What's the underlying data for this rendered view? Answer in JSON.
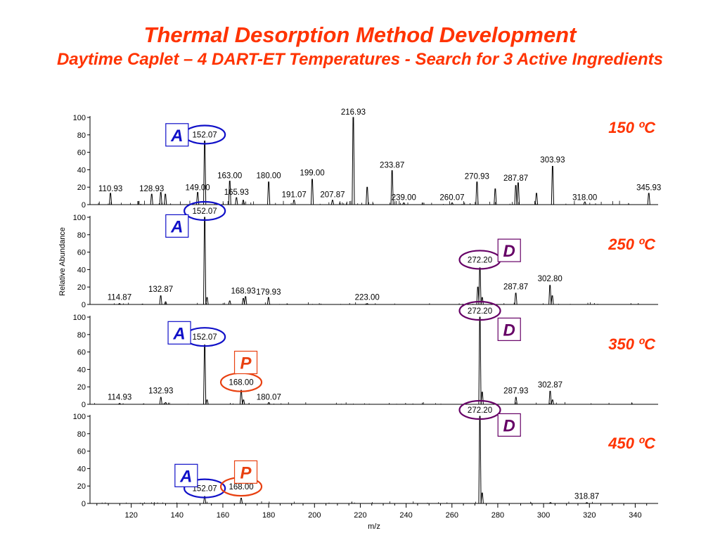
{
  "title": "Thermal Desorption Method Development",
  "subtitle": "Daytime Caplet – 4 DART-ET Temperatures -  Search for 3 Active Ingredients",
  "colors": {
    "title": "#ff3300",
    "blue": "#1010c8",
    "purple": "#660066",
    "orange": "#e84010"
  },
  "chart_data": {
    "type": "line",
    "xlabel": "m/z",
    "ylabel": "Relative Abundance",
    "xlim": [
      102,
      350
    ],
    "ylim": [
      0,
      100
    ],
    "xticks": [
      120,
      140,
      160,
      180,
      200,
      220,
      240,
      260,
      280,
      300,
      320,
      340
    ],
    "yticks": [
      0,
      20,
      40,
      60,
      80,
      100
    ],
    "panels": [
      {
        "temperature": "150 ºC",
        "peaks": [
          {
            "mz": 110.93,
            "y": 13
          },
          {
            "mz": 128.93,
            "y": 12
          },
          {
            "mz": 132.9,
            "y": 14
          },
          {
            "mz": 134.9,
            "y": 12
          },
          {
            "mz": 149.0,
            "y": 14
          },
          {
            "mz": 152.07,
            "y": 73
          },
          {
            "mz": 163.0,
            "y": 27
          },
          {
            "mz": 165.93,
            "y": 8
          },
          {
            "mz": 168.9,
            "y": 5
          },
          {
            "mz": 180.0,
            "y": 26
          },
          {
            "mz": 191.07,
            "y": 5
          },
          {
            "mz": 199.0,
            "y": 29
          },
          {
            "mz": 207.87,
            "y": 5
          },
          {
            "mz": 216.93,
            "y": 100
          },
          {
            "mz": 223.0,
            "y": 20
          },
          {
            "mz": 233.87,
            "y": 39
          },
          {
            "mz": 239.0,
            "y": 2
          },
          {
            "mz": 260.07,
            "y": 2
          },
          {
            "mz": 270.93,
            "y": 26
          },
          {
            "mz": 278.9,
            "y": 18
          },
          {
            "mz": 287.87,
            "y": 22
          },
          {
            "mz": 288.9,
            "y": 25
          },
          {
            "mz": 296.9,
            "y": 13
          },
          {
            "mz": 303.93,
            "y": 44
          },
          {
            "mz": 318.0,
            "y": 3
          },
          {
            "mz": 345.93,
            "y": 13
          }
        ],
        "labels": [
          {
            "text": "110.93",
            "mz": 110.93,
            "y": 13
          },
          {
            "text": "128.93",
            "mz": 128.93,
            "y": 13
          },
          {
            "text": "149.00",
            "mz": 149.0,
            "y": 14
          },
          {
            "text": "163.00",
            "mz": 163.0,
            "y": 28
          },
          {
            "text": "165.93",
            "mz": 165.93,
            "y": 9
          },
          {
            "text": "180.00",
            "mz": 180.0,
            "y": 28
          },
          {
            "text": "191.07",
            "mz": 191.07,
            "y": 6
          },
          {
            "text": "199.00",
            "mz": 199.0,
            "y": 31
          },
          {
            "text": "207.87",
            "mz": 207.87,
            "y": 6
          },
          {
            "text": "216.93",
            "mz": 216.93,
            "y": 101
          },
          {
            "text": "233.87",
            "mz": 233.87,
            "y": 40
          },
          {
            "text": "239.00",
            "mz": 239.0,
            "y": 3
          },
          {
            "text": "260.07",
            "mz": 260.07,
            "y": 3
          },
          {
            "text": "270.93",
            "mz": 270.93,
            "y": 27
          },
          {
            "text": "287.87",
            "mz": 287.87,
            "y": 25
          },
          {
            "text": "303.93",
            "mz": 303.93,
            "y": 46
          },
          {
            "text": "318.00",
            "mz": 318.0,
            "y": 3
          },
          {
            "text": "345.93",
            "mz": 345.93,
            "y": 14
          }
        ],
        "circled": [
          {
            "text": "152.07",
            "mz": 152.07,
            "y": 73,
            "color": "blue"
          }
        ],
        "tags": [
          {
            "letter": "A",
            "mz": 140,
            "y": 80,
            "color": "blue"
          }
        ]
      },
      {
        "temperature": "250 ºC",
        "peaks": [
          {
            "mz": 114.87,
            "y": 1
          },
          {
            "mz": 132.87,
            "y": 10
          },
          {
            "mz": 135.0,
            "y": 3
          },
          {
            "mz": 152.07,
            "y": 100
          },
          {
            "mz": 153.1,
            "y": 8
          },
          {
            "mz": 163.0,
            "y": 4
          },
          {
            "mz": 168.93,
            "y": 7
          },
          {
            "mz": 169.9,
            "y": 9
          },
          {
            "mz": 179.93,
            "y": 8
          },
          {
            "mz": 223.0,
            "y": 1
          },
          {
            "mz": 271.3,
            "y": 20
          },
          {
            "mz": 272.2,
            "y": 42
          },
          {
            "mz": 273.2,
            "y": 8
          },
          {
            "mz": 287.87,
            "y": 13
          },
          {
            "mz": 302.8,
            "y": 22
          },
          {
            "mz": 303.8,
            "y": 10
          }
        ],
        "labels": [
          {
            "text": "114.87",
            "mz": 114.87,
            "y": 3
          },
          {
            "text": "132.87",
            "mz": 132.87,
            "y": 12
          },
          {
            "text": "168.93",
            "mz": 168.93,
            "y": 10
          },
          {
            "text": "179.93",
            "mz": 179.93,
            "y": 9
          },
          {
            "text": "223.00",
            "mz": 223.0,
            "y": 3
          },
          {
            "text": "287.87",
            "mz": 287.87,
            "y": 15
          },
          {
            "text": "302.80",
            "mz": 302.8,
            "y": 24
          }
        ],
        "circled": [
          {
            "text": "152.07",
            "mz": 152.07,
            "y": 100,
            "color": "blue"
          },
          {
            "text": "272.20",
            "mz": 272.2,
            "y": 44,
            "color": "purple"
          }
        ],
        "tags": [
          {
            "letter": "A",
            "mz": 140,
            "y": 90,
            "color": "blue"
          },
          {
            "letter": "D",
            "mz": 285,
            "y": 62,
            "color": "purple"
          }
        ]
      },
      {
        "temperature": "350 ºC",
        "peaks": [
          {
            "mz": 114.93,
            "y": 1
          },
          {
            "mz": 132.93,
            "y": 8
          },
          {
            "mz": 135.0,
            "y": 2
          },
          {
            "mz": 152.07,
            "y": 68
          },
          {
            "mz": 153.1,
            "y": 5
          },
          {
            "mz": 168.0,
            "y": 16
          },
          {
            "mz": 169.0,
            "y": 5
          },
          {
            "mz": 180.07,
            "y": 2
          },
          {
            "mz": 272.2,
            "y": 100
          },
          {
            "mz": 273.2,
            "y": 14
          },
          {
            "mz": 287.93,
            "y": 8
          },
          {
            "mz": 302.87,
            "y": 15
          },
          {
            "mz": 303.9,
            "y": 5
          }
        ],
        "labels": [
          {
            "text": "114.93",
            "mz": 114.93,
            "y": 3
          },
          {
            "text": "132.93",
            "mz": 132.93,
            "y": 10
          },
          {
            "text": "180.07",
            "mz": 180.07,
            "y": 3
          },
          {
            "text": "287.93",
            "mz": 287.93,
            "y": 10
          },
          {
            "text": "302.87",
            "mz": 302.87,
            "y": 17
          }
        ],
        "circled": [
          {
            "text": "272.20",
            "mz": 272.2,
            "y": 100,
            "color": "purple"
          },
          {
            "text": "152.07",
            "mz": 152.07,
            "y": 70,
            "color": "blue"
          },
          {
            "text": "168.00",
            "mz": 168.0,
            "y": 18,
            "color": "orange"
          }
        ],
        "tags": [
          {
            "letter": "A",
            "mz": 141,
            "y": 82,
            "color": "blue"
          },
          {
            "letter": "D",
            "mz": 285,
            "y": 86,
            "color": "purple"
          },
          {
            "letter": "P",
            "mz": 170,
            "y": 48,
            "color": "orange"
          }
        ]
      },
      {
        "temperature": "450 ºC",
        "peaks": [
          {
            "mz": 152.07,
            "y": 8
          },
          {
            "mz": 168.0,
            "y": 6
          },
          {
            "mz": 272.2,
            "y": 100
          },
          {
            "mz": 273.2,
            "y": 12
          },
          {
            "mz": 303.0,
            "y": 1
          },
          {
            "mz": 318.87,
            "y": 1
          }
        ],
        "labels": [
          {
            "text": "318.87",
            "mz": 318.87,
            "y": 3
          }
        ],
        "circled": [
          {
            "text": "272.20",
            "mz": 272.2,
            "y": 100,
            "color": "purple"
          },
          {
            "text": "152.07",
            "mz": 152.07,
            "y": 10,
            "color": "blue"
          },
          {
            "text": "168.00",
            "mz": 168.0,
            "y": 12,
            "color": "orange"
          }
        ],
        "tags": [
          {
            "letter": "A",
            "mz": 144,
            "y": 32,
            "color": "blue"
          },
          {
            "letter": "D",
            "mz": 285,
            "y": 90,
            "color": "purple"
          },
          {
            "letter": "P",
            "mz": 170,
            "y": 36,
            "color": "orange"
          }
        ]
      }
    ]
  }
}
